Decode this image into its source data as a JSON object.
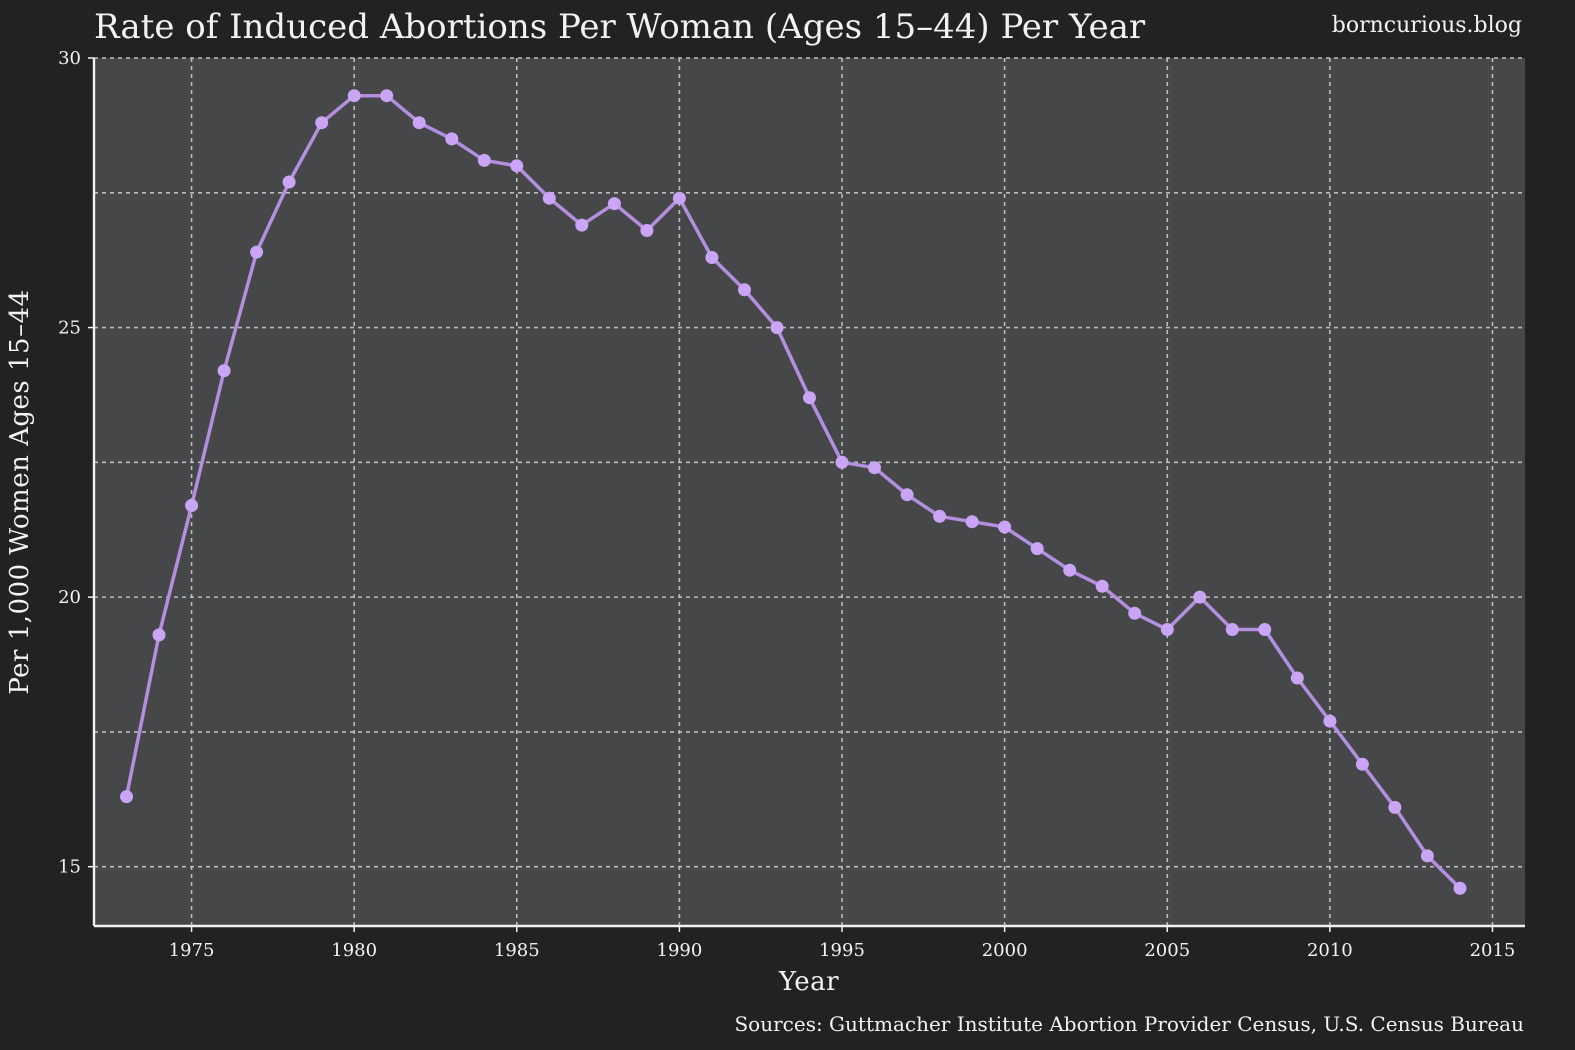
{
  "title": "Rate of Induced Abortions Per Woman (Ages 15–44) Per Year",
  "brand": "borncurious.blog",
  "source": "Sources: Guttmacher Institute Abortion Provider Census, U.S. Census Bureau",
  "colors": {
    "background": "#212224",
    "plot_area": "#464749",
    "line": "#b48fe0",
    "marker": "#caa4f5",
    "text": "#f2f2f2",
    "grid": "#bdbdbd"
  },
  "chart_data": {
    "type": "line",
    "title": "Rate of Induced Abortions Per Woman (Ages 15–44) Per Year",
    "xlabel": "Year",
    "ylabel": "Per 1,000 Women Ages 15–44",
    "xlim": [
      1972,
      2016
    ],
    "ylim": [
      13.9,
      30
    ],
    "x_ticks": [
      1975,
      1980,
      1985,
      1990,
      1995,
      2000,
      2005,
      2010,
      2015
    ],
    "y_ticks": [
      15,
      20,
      25,
      30
    ],
    "y_grid": [
      15,
      17.5,
      20,
      22.5,
      25,
      27.5,
      30
    ],
    "grid": true,
    "legend": "none",
    "series": [
      {
        "x": [
          1973,
          1974,
          1975,
          1976,
          1977,
          1978,
          1979,
          1980,
          1981,
          1982,
          1983,
          1984,
          1985,
          1986,
          1987,
          1988,
          1989,
          1990,
          1991,
          1992,
          1993,
          1994,
          1995,
          1996,
          1997,
          1998,
          1999,
          2000,
          2001,
          2002,
          2003,
          2004,
          2005,
          2006,
          2007,
          2008,
          2009,
          2010,
          2011,
          2012,
          2013,
          2014
        ],
        "values": [
          16.3,
          19.3,
          21.7,
          24.2,
          26.4,
          27.7,
          28.8,
          29.3,
          29.3,
          28.8,
          28.5,
          28.1,
          28.0,
          27.4,
          26.9,
          27.3,
          26.8,
          27.4,
          26.3,
          25.7,
          25.0,
          23.7,
          22.5,
          22.4,
          21.9,
          21.5,
          21.4,
          21.3,
          20.9,
          20.5,
          20.2,
          19.7,
          19.4,
          20.0,
          19.4,
          19.4,
          18.5,
          17.7,
          16.9,
          16.1,
          15.2,
          14.6
        ]
      }
    ]
  }
}
